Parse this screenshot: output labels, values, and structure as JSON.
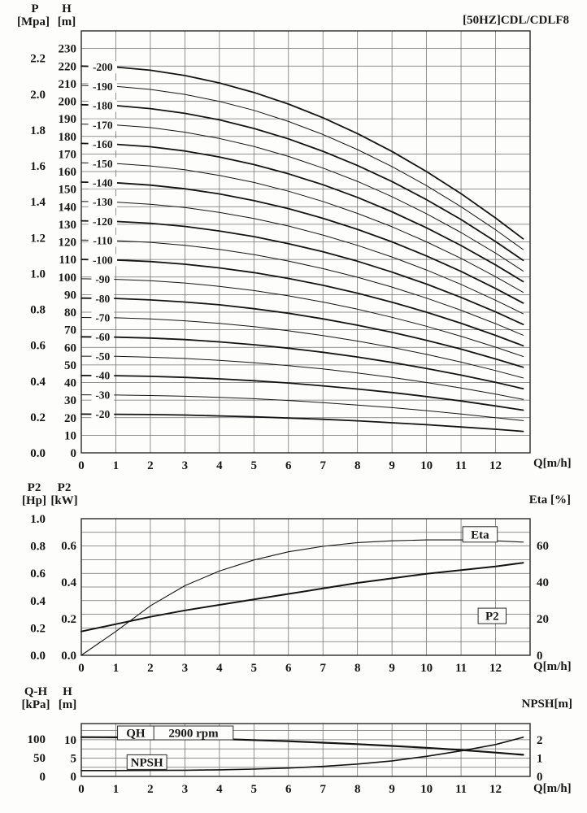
{
  "headers": {
    "c1": {
      "outer_sym": "P",
      "outer_unit": "[Mpa]",
      "inner_sym": "H",
      "inner_unit": "[m]",
      "title": "[50HZ]CDL/CDLF8",
      "xlabel": "Q[m/h]"
    },
    "c2": {
      "outer_sym": "P2",
      "outer_unit": "[Hp]",
      "inner_sym": "P2",
      "inner_unit": "[kW]",
      "right_title": "Eta [%]",
      "xlabel": "Q[m/h]"
    },
    "c3": {
      "outer_sym": "Q-H",
      "outer_unit": "[kPa]",
      "inner_sym": "H",
      "inner_unit": "[m]",
      "right_title": "NPSH[m]",
      "xlabel": "Q[m/h]"
    }
  },
  "chart_data": [
    {
      "type": "line",
      "title": "[50HZ]CDL/CDLF8",
      "xlabel": "Q[m/h]",
      "x_max": 13,
      "x": [
        0,
        1,
        2,
        3,
        4,
        5,
        6,
        7,
        8,
        9,
        10,
        11,
        12,
        12.8
      ],
      "x_ticks": [
        "0",
        "1",
        "2",
        "3",
        "4",
        "5",
        "6",
        "7",
        "8",
        "9",
        "10",
        "11",
        "12"
      ],
      "left_inner": {
        "label": "H [m]",
        "axis_max": 240,
        "ticks": [
          "0",
          "10",
          "20",
          "30",
          "40",
          "50",
          "60",
          "70",
          "80",
          "90",
          "100",
          "110",
          "120",
          "130",
          "140",
          "150",
          "160",
          "170",
          "180",
          "190",
          "200",
          "210",
          "220",
          "230"
        ]
      },
      "left_outer": {
        "label": "P [Mpa]",
        "m_per_unit": 102,
        "ticks": [
          "0.0",
          "0.2",
          "0.4",
          "0.6",
          "0.8",
          "1.0",
          "1.2",
          "1.4",
          "1.6",
          "1.8",
          "2.0",
          "2.2"
        ]
      },
      "series": [
        {
          "label": "-20",
          "bold": true,
          "values": [
            22,
            21.9,
            21.8,
            21.5,
            21,
            20.5,
            19.8,
            19.1,
            18.2,
            17.1,
            16,
            14.7,
            13.4,
            12.2
          ]
        },
        {
          "label": "-30",
          "bold": false,
          "values": [
            33,
            32.9,
            32.6,
            32.2,
            31.6,
            30.8,
            29.8,
            28.6,
            27.2,
            25.7,
            24,
            22.1,
            20,
            18.3
          ]
        },
        {
          "label": "-40",
          "bold": true,
          "values": [
            44,
            43.9,
            43.5,
            42.9,
            42.1,
            41,
            39.7,
            38.1,
            36.3,
            34.3,
            32,
            29.5,
            26.7,
            24.3
          ]
        },
        {
          "label": "-50",
          "bold": false,
          "values": [
            55,
            54.9,
            54.4,
            53.7,
            52.6,
            51.3,
            49.6,
            47.7,
            45.4,
            42.9,
            40,
            36.9,
            33.4,
            30.4
          ]
        },
        {
          "label": "-60",
          "bold": true,
          "values": [
            66,
            65.8,
            65.3,
            64.4,
            63.1,
            61.5,
            59.5,
            57.2,
            54.5,
            51.4,
            48,
            44.2,
            40.1,
            36.5
          ]
        },
        {
          "label": "-70",
          "bold": false,
          "values": [
            77,
            76.8,
            76.2,
            75.1,
            73.6,
            71.8,
            69.4,
            66.7,
            63.6,
            60,
            56,
            51.6,
            46.8,
            42.6
          ]
        },
        {
          "label": "-80",
          "bold": true,
          "values": [
            88,
            87.8,
            87,
            85.8,
            84.2,
            82,
            79.4,
            76.2,
            72.6,
            68.6,
            64,
            59,
            53.4,
            48.7
          ]
        },
        {
          "label": "-90",
          "bold": false,
          "values": [
            99,
            98.7,
            97.9,
            96.6,
            94.7,
            92.3,
            89.3,
            85.8,
            81.7,
            77.1,
            72,
            66.3,
            60.1,
            54.8
          ]
        },
        {
          "label": "-100",
          "bold": true,
          "values": [
            110,
            109.7,
            108.8,
            107.3,
            105.2,
            102.5,
            99.2,
            95.3,
            90.8,
            85.7,
            80,
            73.7,
            66.8,
            60.9
          ]
        },
        {
          "label": "-110",
          "bold": false,
          "values": [
            121,
            120.7,
            119.7,
            118,
            115.7,
            112.8,
            109.1,
            104.8,
            99.9,
            94.3,
            88,
            81.1,
            73.5,
            66.9
          ]
        },
        {
          "label": "-120",
          "bold": true,
          "values": [
            132,
            131.6,
            130.6,
            128.8,
            126.2,
            123,
            119,
            114.4,
            109,
            102.8,
            96,
            88.4,
            80.2,
            73
          ]
        },
        {
          "label": "-130",
          "bold": false,
          "values": [
            143,
            142.6,
            141.4,
            139.5,
            136.8,
            133.3,
            129,
            123.9,
            118,
            111.4,
            104,
            95.8,
            86.8,
            79.1
          ]
        },
        {
          "label": "-140",
          "bold": true,
          "values": [
            154,
            153.6,
            152.3,
            150.2,
            147.3,
            143.5,
            138.9,
            133.4,
            127.1,
            120,
            112,
            103.2,
            93.5,
            85.2
          ]
        },
        {
          "label": "-150",
          "bold": false,
          "values": [
            165,
            164.6,
            163.2,
            161,
            157.8,
            153.8,
            148.8,
            143,
            136.2,
            128.6,
            120,
            110.6,
            100.2,
            91.3
          ]
        },
        {
          "label": "-160",
          "bold": true,
          "values": [
            176,
            175.5,
            174.1,
            171.7,
            168.3,
            164,
            158.7,
            152.5,
            145.3,
            137.1,
            128,
            117.9,
            106.9,
            97.4
          ]
        },
        {
          "label": "-170",
          "bold": false,
          "values": [
            187,
            186.5,
            185,
            182.4,
            178.8,
            174.3,
            168.6,
            162,
            154.4,
            145.7,
            136,
            125.3,
            113.6,
            103.4
          ]
        },
        {
          "label": "-180",
          "bold": true,
          "values": [
            198,
            197.5,
            195.8,
            193.1,
            189.4,
            184.5,
            178.6,
            171.5,
            163.4,
            154.3,
            144,
            132.7,
            120.2,
            109.5
          ]
        },
        {
          "label": "-190",
          "bold": false,
          "values": [
            209,
            208.4,
            206.7,
            203.9,
            199.9,
            194.8,
            188.5,
            181.1,
            172.5,
            162.8,
            152,
            140,
            126.9,
            115.6
          ]
        },
        {
          "label": "-200",
          "bold": true,
          "values": [
            220,
            219.4,
            217.6,
            214.6,
            210.4,
            205,
            198.4,
            190.6,
            181.6,
            171.4,
            160,
            147.4,
            133.6,
            121.7
          ]
        }
      ]
    },
    {
      "type": "line",
      "xlabel": "Q[m/h]",
      "x_max": 13,
      "x": [
        0,
        1,
        2,
        3,
        4,
        5,
        6,
        7,
        8,
        9,
        10,
        11,
        12,
        12.8
      ],
      "x_ticks": [
        "0",
        "1",
        "2",
        "3",
        "4",
        "5",
        "6",
        "7",
        "8",
        "9",
        "10",
        "11",
        "12"
      ],
      "left_outer": {
        "label": "P2 [Hp]",
        "axis_max": 1.0,
        "ticks": [
          "1.0",
          "0.8",
          "0.6",
          "0.4",
          "0.2",
          "0.0"
        ]
      },
      "left_inner": {
        "label": "P2 [kW]",
        "axis_max": 0.7457,
        "ticks": [
          "0.6",
          "0.4",
          "0.2",
          "0.0"
        ]
      },
      "right": {
        "label": "Eta [%]",
        "axis_max": 74.57,
        "ticks": [
          "60",
          "40",
          "20",
          "0"
        ]
      },
      "series": [
        {
          "name": "Eta",
          "axis": "right",
          "bold": false,
          "values": [
            0,
            13,
            27,
            38,
            46,
            52,
            56.5,
            59.5,
            61.5,
            62.5,
            63,
            63,
            62.5,
            61.8
          ]
        },
        {
          "name": "P2",
          "axis": "inner",
          "bold": true,
          "values": [
            0.13,
            0.17,
            0.21,
            0.245,
            0.275,
            0.305,
            0.335,
            0.365,
            0.395,
            0.42,
            0.445,
            0.465,
            0.485,
            0.505
          ]
        }
      ],
      "curve_labels": [
        {
          "text": "Eta",
          "axis": "right",
          "q": 11.55,
          "v": 66
        },
        {
          "text": "P2",
          "axis": "inner",
          "q": 11.9,
          "v": 0.215
        }
      ]
    },
    {
      "type": "line",
      "xlabel": "Q[m/h]",
      "x_max": 13,
      "x": [
        0,
        1,
        2,
        3,
        4,
        5,
        6,
        7,
        8,
        9,
        10,
        11,
        12,
        12.8
      ],
      "x_ticks": [
        "0",
        "1",
        "2",
        "3",
        "4",
        "5",
        "6",
        "7",
        "8",
        "9",
        "10",
        "11",
        "12"
      ],
      "left_outer": {
        "label": "Q-H [kPa]",
        "m_per_unit": 0.102,
        "ticks": [
          "100",
          "50",
          "0"
        ]
      },
      "left_inner": {
        "label": "H [m]",
        "axis_max": 14.4,
        "ticks": [
          "10",
          "5",
          "0"
        ]
      },
      "right": {
        "label": "NPSH[m]",
        "axis_max": 2.9,
        "ticks": [
          "2",
          "1",
          "0"
        ]
      },
      "grid_lines_m": [
        2.5,
        5,
        7.5,
        10,
        12.5
      ],
      "series": [
        {
          "name": "QH",
          "axis": "inner",
          "bold": true,
          "rpm_note": "2900 rpm",
          "values": [
            10.7,
            10.65,
            10.55,
            10.4,
            10.2,
            9.9,
            9.6,
            9.2,
            8.8,
            8.3,
            7.8,
            7.2,
            6.5,
            5.9
          ]
        },
        {
          "name": "NPSH",
          "axis": "right",
          "bold": false,
          "values": [
            0.32,
            0.32,
            0.33,
            0.34,
            0.36,
            0.4,
            0.46,
            0.55,
            0.68,
            0.85,
            1.1,
            1.4,
            1.75,
            2.15
          ]
        }
      ],
      "curve_labels": [
        {
          "cells": [
            "QH",
            "2900 rpm"
          ],
          "q1": 1.05,
          "q_div": 2.1,
          "q2": 4.4
        },
        {
          "text": "NPSH",
          "axis": "inner",
          "q": 1.9,
          "v": 3.9
        }
      ]
    }
  ]
}
